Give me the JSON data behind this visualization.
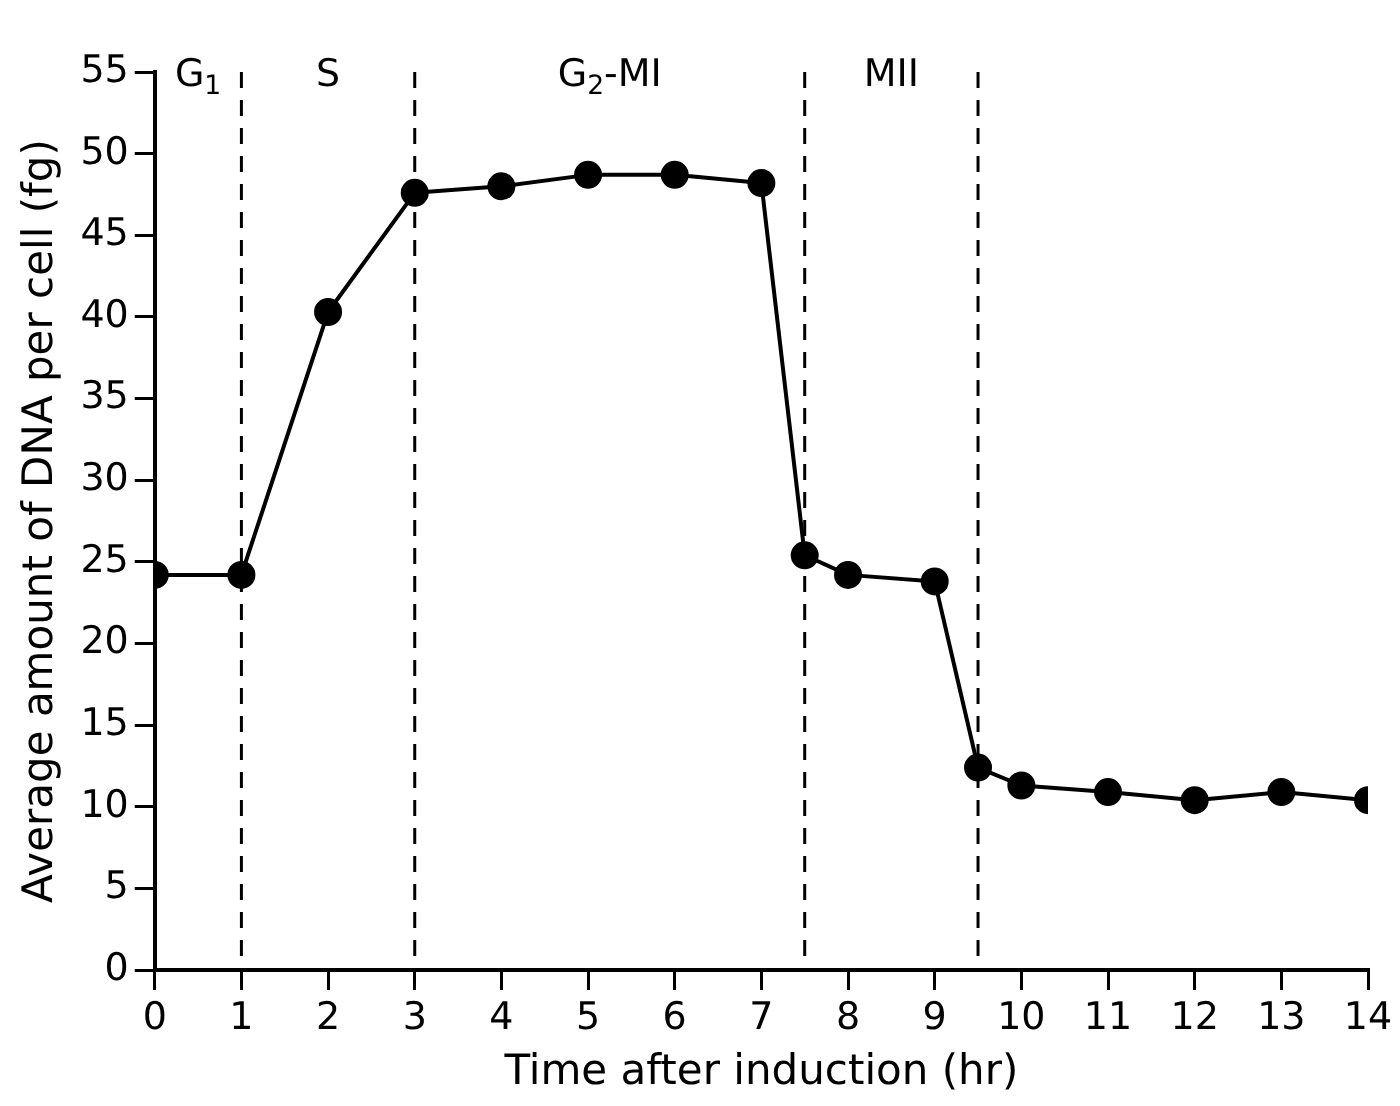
{
  "chart_data": {
    "type": "line",
    "xlabel": "Time after induction (hr)",
    "ylabel": "Average amount of DNA per cell (fg)",
    "x": [
      0,
      1,
      2,
      3,
      4,
      5,
      6,
      7,
      7.5,
      8,
      9,
      9.5,
      10,
      11,
      12,
      13,
      14
    ],
    "series": [
      {
        "color": "#000000",
        "values": [
          24.2,
          24.2,
          40.3,
          47.6,
          48,
          48.7,
          48.7,
          48.2,
          25.4,
          24.2,
          23.8,
          12.4,
          11.3,
          10.9,
          10.4,
          10.9,
          10.4
        ]
      }
    ],
    "xlim": [
      0,
      14
    ],
    "xticks": [
      0,
      1,
      2,
      3,
      4,
      5,
      6,
      7,
      8,
      9,
      10,
      11,
      12,
      13,
      14
    ],
    "ylim": [
      0,
      55
    ],
    "yticks": [
      0,
      5,
      10,
      15,
      20,
      25,
      30,
      35,
      40,
      45,
      50,
      55
    ],
    "grid": false,
    "legend": false,
    "marker": "circle",
    "line_style": "solid",
    "ref_lines": [
      {
        "axis": "x",
        "value": 1,
        "line_style": "dashed"
      },
      {
        "axis": "x",
        "value": 3,
        "line_style": "dashed"
      },
      {
        "axis": "x",
        "value": 7.5,
        "line_style": "dashed"
      },
      {
        "axis": "x",
        "value": 9.5,
        "line_style": "dashed"
      }
    ],
    "annotations": [
      "G$_{1}$",
      "S",
      "G$_{2}$-MI",
      "MII"
    ]
  }
}
